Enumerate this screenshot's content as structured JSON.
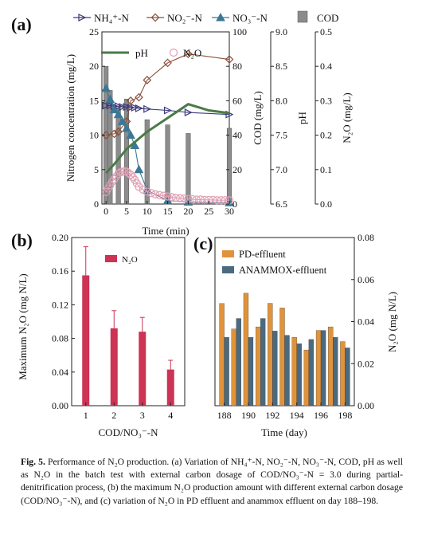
{
  "chart_data": [
    {
      "panel": "a",
      "type": "line",
      "panel_label": "(a)",
      "xlabel": "Time (min)",
      "xlim": [
        -1,
        30
      ],
      "x_ticks": [
        0,
        5,
        10,
        15,
        20,
        25,
        30
      ],
      "left_axis": {
        "label": "Nitrogen concentration (mg/L)",
        "ylim": [
          0,
          25
        ],
        "ticks": [
          0,
          5,
          10,
          15,
          20,
          25
        ]
      },
      "cod_axis": {
        "label": "COD (mg/L)",
        "ylim": [
          0,
          100
        ],
        "ticks": [
          0,
          20,
          40,
          60,
          80,
          100
        ]
      },
      "ph_axis": {
        "label": "pH",
        "ylim": [
          6.5,
          9.0
        ],
        "ticks": [
          6.5,
          7.0,
          7.5,
          8.0,
          8.5,
          9.0
        ]
      },
      "n2o_axis": {
        "label": "N₂O (mg/L)",
        "ylim": [
          0,
          0.5
        ],
        "ticks": [
          0.0,
          0.1,
          0.2,
          0.3,
          0.4,
          0.5
        ]
      },
      "legend": [
        "NH₄⁺-N",
        "NO₂⁻-N",
        "NO₃⁻-N",
        "COD",
        "pH",
        "N₂O"
      ],
      "colors": {
        "nh4": "#3c3a7c",
        "no2": "#8a5038",
        "no3": "#3c7896",
        "cod": "#8c8c8c",
        "ph": "#4a7a48",
        "n2o": "#e0a0b4"
      },
      "series": [
        {
          "name": "NH₄⁺-N",
          "axis": "left",
          "x": [
            0,
            1,
            2,
            3,
            4,
            5,
            6,
            7,
            8,
            10,
            15,
            20,
            30
          ],
          "values": [
            14.3,
            14.3,
            14.2,
            14.2,
            14.1,
            14.1,
            14.0,
            14.0,
            13.9,
            13.8,
            13.6,
            13.3,
            13.0
          ]
        },
        {
          "name": "NO₂⁻-N",
          "axis": "left",
          "x": [
            0,
            2,
            3,
            5,
            6,
            8,
            10,
            15,
            20,
            30
          ],
          "values": [
            10.0,
            10.2,
            10.5,
            12.0,
            15.0,
            15.5,
            18.0,
            20.5,
            21.8,
            21.0
          ]
        },
        {
          "name": "NO₃⁻-N",
          "axis": "left",
          "x": [
            0,
            1,
            2,
            3,
            4,
            5,
            6,
            7,
            8,
            10,
            15,
            20,
            30
          ],
          "values": [
            16.8,
            15.2,
            13.7,
            13.0,
            12.0,
            11.0,
            10.0,
            8.5,
            5.0,
            2.0,
            0.5,
            0.3,
            0.2
          ]
        },
        {
          "name": "COD",
          "axis": "cod",
          "bar": true,
          "x": [
            0,
            1,
            3,
            5,
            10,
            15,
            20,
            30
          ],
          "values": [
            80,
            66,
            56,
            61,
            49,
            46,
            41,
            44
          ]
        },
        {
          "name": "pH",
          "axis": "ph",
          "x": [
            0,
            2,
            5,
            8,
            10,
            15,
            20,
            25,
            30
          ],
          "values": [
            6.95,
            7.08,
            7.3,
            7.45,
            7.55,
            7.75,
            7.95,
            7.86,
            7.82
          ]
        },
        {
          "name": "N₂O",
          "axis": "n2o",
          "x": [
            0,
            0.5,
            1,
            1.5,
            2,
            2.5,
            3,
            3.5,
            4,
            4.5,
            5,
            5.5,
            6,
            6.5,
            7,
            7.5,
            8,
            9,
            10,
            11,
            12,
            13,
            14,
            15,
            16,
            17,
            18,
            19,
            20,
            21,
            22,
            23,
            24,
            25,
            26,
            27,
            28,
            29,
            30
          ],
          "values": [
            0.035,
            0.045,
            0.055,
            0.065,
            0.072,
            0.08,
            0.088,
            0.092,
            0.094,
            0.095,
            0.094,
            0.09,
            0.085,
            0.078,
            0.07,
            0.06,
            0.05,
            0.042,
            0.036,
            0.032,
            0.028,
            0.026,
            0.024,
            0.022,
            0.02,
            0.018,
            0.017,
            0.016,
            0.015,
            0.014,
            0.013,
            0.013,
            0.012,
            0.012,
            0.012,
            0.011,
            0.011,
            0.011,
            0.011
          ]
        }
      ]
    },
    {
      "panel": "b",
      "type": "bar",
      "panel_label": "(b)",
      "categories": [
        "1",
        "2",
        "3",
        "4"
      ],
      "xlabel": "COD/NO₃⁻-N",
      "ylabel": "Maximum N₂O (mg N/L)",
      "ylim": [
        0,
        0.2
      ],
      "y_ticks": [
        "0.00",
        "0.04",
        "0.08",
        "0.12",
        "0.16",
        "0.20"
      ],
      "legend": [
        "N₂O"
      ],
      "color": "#cc3355",
      "series": [
        {
          "name": "N₂O",
          "values": [
            0.155,
            0.092,
            0.088,
            0.043
          ],
          "errors": [
            0.034,
            0.021,
            0.017,
            0.011
          ]
        }
      ]
    },
    {
      "panel": "c",
      "type": "bar",
      "panel_label": "(c)",
      "categories": [
        "188",
        "189",
        "190",
        "191",
        "192",
        "193",
        "194",
        "195",
        "196",
        "197",
        "198"
      ],
      "x_tick_labels": [
        "188",
        "190",
        "192",
        "194",
        "196",
        "198"
      ],
      "xlabel": "Time (day)",
      "ylabel": "N₂O (mg N/L)",
      "ylim": [
        0,
        0.08
      ],
      "y_ticks": [
        "0.00",
        "0.02",
        "0.04",
        "0.06",
        "0.08"
      ],
      "legend_position": "top-left",
      "series": [
        {
          "name": "PD-effluent",
          "color": "#e0933a",
          "values": [
            0.0486,
            0.0365,
            0.0535,
            0.0375,
            0.0487,
            0.0465,
            0.0325,
            0.0265,
            0.0358,
            0.0375,
            0.0305
          ]
        },
        {
          "name": "ANAMMOX-effluent",
          "color": "#4a6a80",
          "values": [
            0.0325,
            0.0415,
            0.0325,
            0.0415,
            0.0355,
            0.0335,
            0.0295,
            0.0315,
            0.0358,
            0.0325,
            0.0275
          ]
        }
      ]
    }
  ],
  "caption": {
    "label": "Fig. 5.",
    "text": "Performance of N₂O production. (a) Variation of NH₄⁺-N, NO₂⁻-N, NO₃⁻-N, COD, pH as well as N₂O in the batch test with external carbon dosage of COD/NO₃⁻-N = 3.0 during partial-denitrification process, (b) the maximum N₂O production amount with different external carbon dosage (COD/NO₃⁻-N), and (c) variation of N₂O in PD effluent and anammox effluent on day 188–198."
  }
}
